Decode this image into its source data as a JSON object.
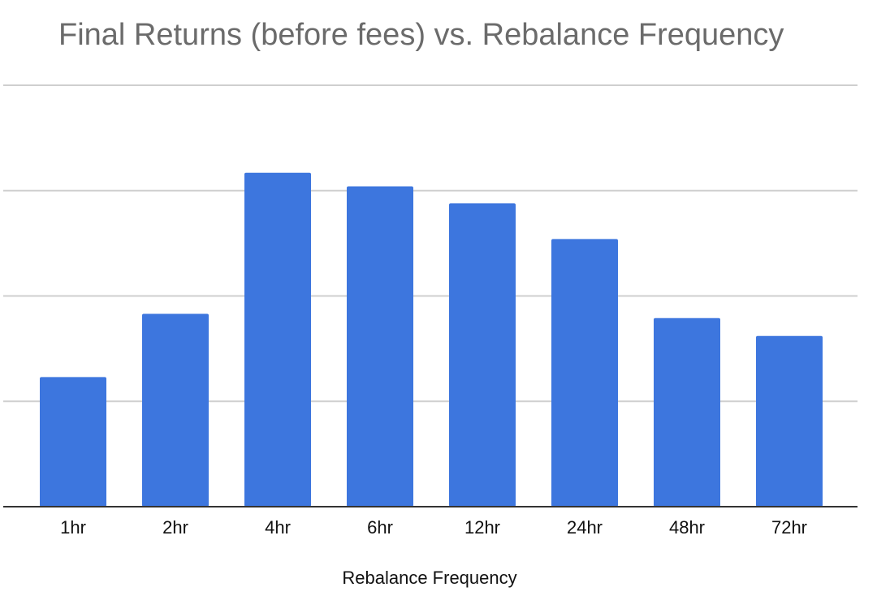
{
  "chart_data": {
    "type": "bar",
    "title": "Final Returns (before fees) vs. Rebalance Frequency",
    "xlabel": "Rebalance Frequency",
    "ylabel": "",
    "categories": [
      "1hr",
      "2hr",
      "4hr",
      "6hr",
      "12hr",
      "24hr",
      "48hr",
      "72hr"
    ],
    "values": [
      1.23,
      1.83,
      3.17,
      3.04,
      2.88,
      2.54,
      1.79,
      1.62
    ],
    "ylim": [
      0,
      4
    ],
    "gridlines": [
      1,
      2,
      3,
      4
    ],
    "grid": true,
    "legend": "none",
    "y_tick_labels_shown": false,
    "colors": {
      "bar": "#3d76de",
      "grid": "#cfcfcf",
      "axis": "#333333",
      "title": "#6b6b6b",
      "text": "#111111"
    }
  }
}
